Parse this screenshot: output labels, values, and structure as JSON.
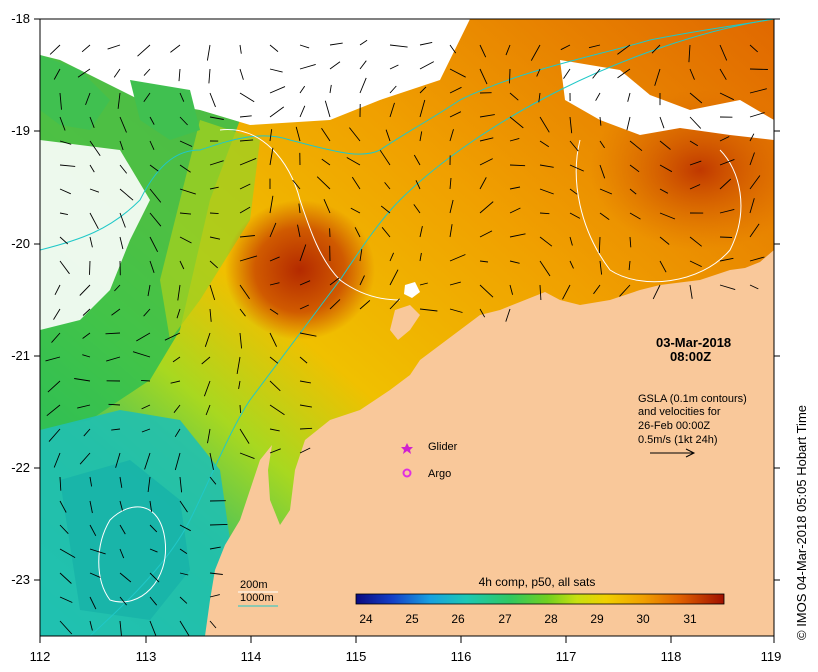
{
  "map": {
    "lon_ticks": [
      "112",
      "113",
      "114",
      "115",
      "116",
      "117",
      "118",
      "119"
    ],
    "lat_ticks": [
      "-18",
      "-19",
      "-20",
      "-21",
      "-22",
      "-23"
    ],
    "lon_range": [
      112,
      119
    ],
    "lat_range": [
      -23.5,
      -18
    ]
  },
  "date": {
    "line1": "03-Mar-2018",
    "line2": "08:00Z"
  },
  "gsla_note": {
    "line1": "GSLA (0.1m contours)",
    "line2": "and velocities for",
    "line3": "26-Feb 00:00Z",
    "line4": "0.5m/s (1kt 24h)"
  },
  "legend": {
    "glider": "Glider",
    "argo": "Argo",
    "iso_200": "200m",
    "iso_1000": "1000m"
  },
  "colorbar": {
    "title": "4h comp, p50, all sats",
    "ticks": [
      "24",
      "25",
      "26",
      "27",
      "28",
      "29",
      "30",
      "31"
    ]
  },
  "credit": "© IMOS 04-Mar-2018 05:05 Hobart Time",
  "colors": {
    "land": "#f9c89a",
    "glider_marker": "#d020d0",
    "argo_marker": "#e030e0",
    "isobath": "#20c8c8",
    "gsla_contour": "#ffffff"
  }
}
